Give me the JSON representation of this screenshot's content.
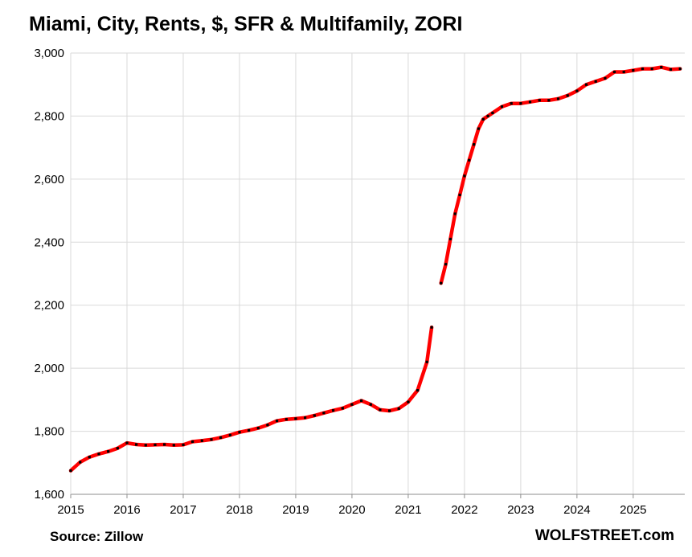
{
  "chart_data": {
    "type": "line",
    "title": "Miami, City, Rents, $, SFR & Multifamily, ZORI",
    "xlabel": "",
    "ylabel": "",
    "ylim": [
      1600,
      3000
    ],
    "xlim": [
      "2015-01",
      "2025-12"
    ],
    "yticks": [
      "1,600",
      "1,800",
      "2,000",
      "2,200",
      "2,400",
      "2,600",
      "2,800",
      "3,000"
    ],
    "xticks": [
      "2015",
      "2016",
      "2017",
      "2018",
      "2019",
      "2020",
      "2021",
      "2022",
      "2023",
      "2024",
      "2025"
    ],
    "grid": true,
    "legend": "none",
    "line_color": "#ff0000",
    "marker_color": "#000000",
    "segments": [
      {
        "x": [
          "2015-01",
          "2015-03",
          "2015-05",
          "2015-07",
          "2015-09",
          "2015-11",
          "2016-01",
          "2016-03",
          "2016-05",
          "2016-07",
          "2016-09",
          "2016-11",
          "2017-01",
          "2017-03",
          "2017-05",
          "2017-07",
          "2017-09",
          "2017-11",
          "2018-01",
          "2018-03",
          "2018-05",
          "2018-07",
          "2018-09",
          "2018-11",
          "2019-01",
          "2019-03",
          "2019-05",
          "2019-07",
          "2019-09",
          "2019-11",
          "2020-01",
          "2020-03",
          "2020-05",
          "2020-07",
          "2020-09",
          "2020-11",
          "2021-01",
          "2021-03",
          "2021-05",
          "2021-06"
        ],
        "y": [
          1675,
          1702,
          1718,
          1728,
          1736,
          1746,
          1763,
          1758,
          1756,
          1757,
          1758,
          1756,
          1757,
          1767,
          1770,
          1774,
          1780,
          1788,
          1797,
          1803,
          1810,
          1820,
          1833,
          1838,
          1840,
          1843,
          1850,
          1858,
          1866,
          1873,
          1885,
          1897,
          1885,
          1868,
          1865,
          1872,
          1893,
          1930,
          2020,
          2130
        ]
      },
      {
        "x": [
          "2021-08",
          "2021-09",
          "2021-10",
          "2021-11",
          "2021-12",
          "2022-01",
          "2022-02",
          "2022-03",
          "2022-04",
          "2022-05",
          "2022-06",
          "2022-07",
          "2022-09",
          "2022-11",
          "2023-01",
          "2023-03",
          "2023-05",
          "2023-07",
          "2023-09",
          "2023-11",
          "2024-01",
          "2024-03",
          "2024-05",
          "2024-07",
          "2024-09",
          "2024-11",
          "2025-01",
          "2025-03",
          "2025-05",
          "2025-07",
          "2025-09",
          "2025-11"
        ],
        "y": [
          2270,
          2330,
          2410,
          2490,
          2550,
          2610,
          2660,
          2710,
          2760,
          2790,
          2800,
          2810,
          2830,
          2840,
          2840,
          2845,
          2850,
          2850,
          2855,
          2865,
          2880,
          2900,
          2910,
          2920,
          2940,
          2940,
          2945,
          2950,
          2950,
          2955,
          2948,
          2950
        ]
      }
    ]
  },
  "footer": {
    "source": "Source: Zillow",
    "brand": "WOLFSTREET.com"
  }
}
